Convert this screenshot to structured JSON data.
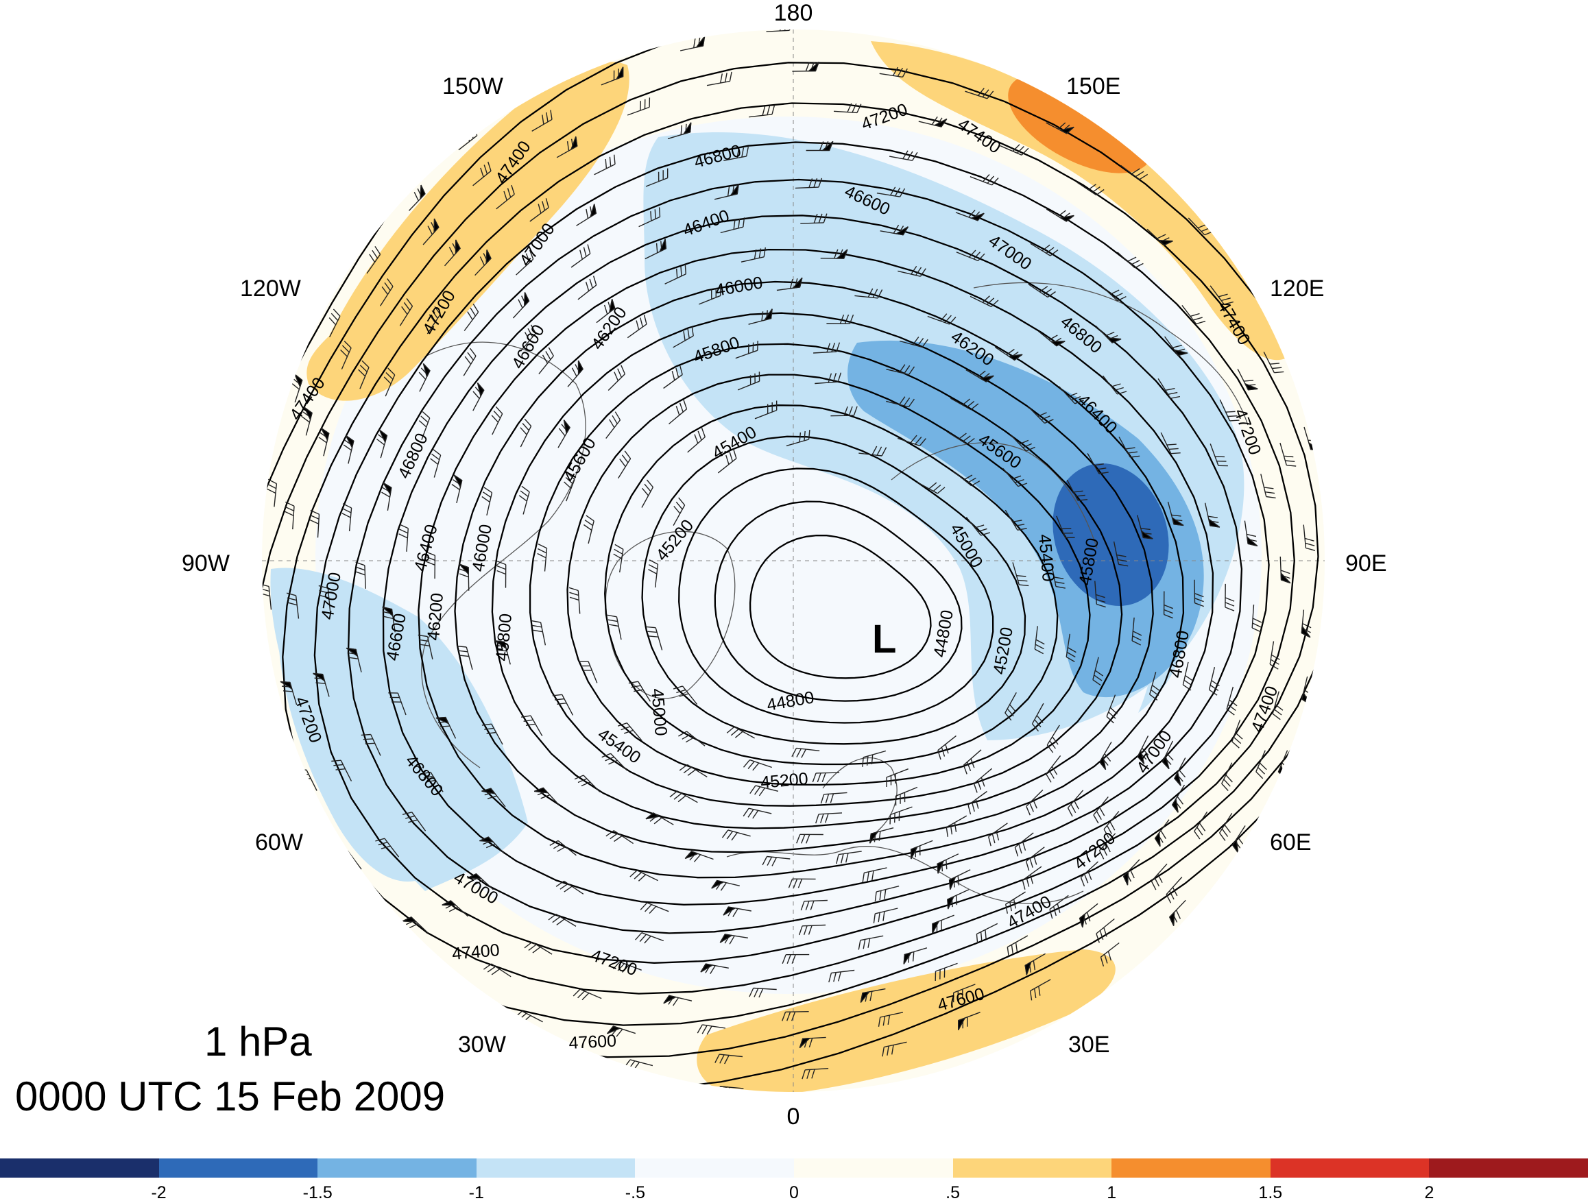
{
  "title": {
    "level": "1 hPa",
    "valid_time": "0000 UTC 15 Feb 2009"
  },
  "longitude_labels": [
    "180",
    "150E",
    "120E",
    "90E",
    "60E",
    "30E",
    "0",
    "30W",
    "60W",
    "90W",
    "120W",
    "150W"
  ],
  "low_marker": "L",
  "contour_labels": [
    "44800",
    "45000",
    "45200",
    "45400",
    "45600",
    "45800",
    "46000",
    "46200",
    "46400",
    "46600",
    "46800",
    "47000",
    "47200",
    "47400",
    "47600"
  ],
  "colorbar": {
    "colors": [
      "#1a2f6b",
      "#2e6ab8",
      "#74b3e3",
      "#c4e3f6",
      "#f5f9fd",
      "#fefcf1",
      "#fdd57a",
      "#f58e2e",
      "#dc3326",
      "#9e1a1d"
    ],
    "labels": [
      "-2",
      "-1.5",
      "-1",
      "-.5",
      "0",
      ".5",
      "1",
      "1.5",
      "2"
    ]
  },
  "colors": {
    "background": "#ffffff",
    "disk_fill": "#fefcf1",
    "contour": "#000000",
    "coast": "#555555"
  }
}
